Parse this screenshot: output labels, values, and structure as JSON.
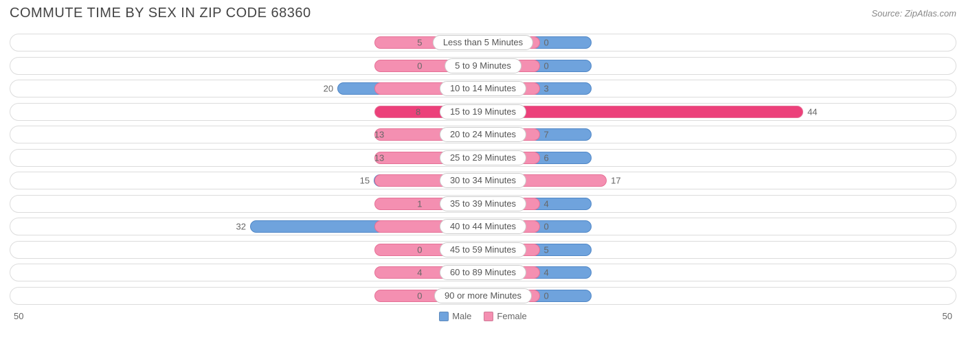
{
  "title": "COMMUTE TIME BY SEX IN ZIP CODE 68360",
  "source": "Source: ZipAtlas.com",
  "chart": {
    "type": "diverging-bar",
    "axis_max": 50,
    "label_pad_ratio": 0.115,
    "min_bar_ratio": 0.06,
    "colors": {
      "male": "#6fa3dd",
      "male_border": "#4f86c6",
      "female": "#f48fb1",
      "female_border": "#e56f95",
      "female_highlight": "#ec407a",
      "track_border": "#dcdcdc",
      "label_border": "#cccccc",
      "text": "#666666",
      "title_text": "#444444",
      "background": "#ffffff"
    },
    "categories": [
      {
        "label": "Less than 5 Minutes",
        "male": 5,
        "female": 0
      },
      {
        "label": "5 to 9 Minutes",
        "male": 0,
        "female": 0
      },
      {
        "label": "10 to 14 Minutes",
        "male": 20,
        "female": 3
      },
      {
        "label": "15 to 19 Minutes",
        "male": 8,
        "female": 44,
        "female_highlight": true
      },
      {
        "label": "20 to 24 Minutes",
        "male": 13,
        "female": 7
      },
      {
        "label": "25 to 29 Minutes",
        "male": 13,
        "female": 6
      },
      {
        "label": "30 to 34 Minutes",
        "male": 15,
        "female": 17
      },
      {
        "label": "35 to 39 Minutes",
        "male": 1,
        "female": 4
      },
      {
        "label": "40 to 44 Minutes",
        "male": 32,
        "female": 0
      },
      {
        "label": "45 to 59 Minutes",
        "male": 0,
        "female": 5
      },
      {
        "label": "60 to 89 Minutes",
        "male": 4,
        "female": 4
      },
      {
        "label": "90 or more Minutes",
        "male": 0,
        "female": 0
      }
    ],
    "legend": [
      {
        "label": "Male",
        "color_key": "male"
      },
      {
        "label": "Female",
        "color_key": "female"
      }
    ],
    "axis_labels": {
      "left": "50",
      "right": "50"
    }
  }
}
